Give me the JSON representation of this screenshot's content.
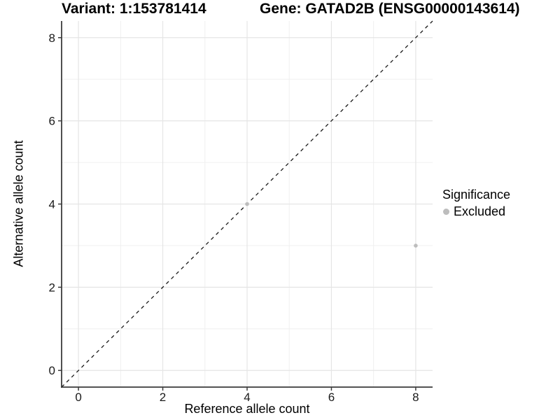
{
  "titles": {
    "variant": "Variant: 1:153781414",
    "gene": "Gene: GATAD2B (ENSG00000143614)"
  },
  "chart_data": {
    "type": "scatter",
    "title": "Variant: 1:153781414   Gene: GATAD2B (ENSG00000143614)",
    "xlabel": "Reference allele count",
    "ylabel": "Alternative allele count",
    "xlim": [
      -0.4,
      8.4
    ],
    "ylim": [
      -0.4,
      8.4
    ],
    "x_ticks": [
      0,
      2,
      4,
      6,
      8
    ],
    "y_ticks": [
      0,
      2,
      4,
      6,
      8
    ],
    "x_minor_ticks": [
      1,
      3,
      5,
      7
    ],
    "y_minor_ticks": [
      1,
      3,
      5,
      7
    ],
    "grid": "major+minor",
    "legend_position": "right",
    "legend": {
      "title": "Significance",
      "entries": [
        {
          "label": "Excluded",
          "color": "#bdbdbd"
        }
      ]
    },
    "series": [
      {
        "name": "Excluded",
        "color": "#bdbdbd",
        "marker": "circle",
        "points": [
          {
            "x": 4,
            "y": 4
          },
          {
            "x": 8,
            "y": 3
          }
        ]
      }
    ],
    "reference_line": {
      "type": "identity",
      "equation": "y = x",
      "style": "dashed",
      "color": "#1a1a1a"
    }
  },
  "colors": {
    "background": "#ffffff",
    "grid_major": "#e5e5e5",
    "grid_minor": "#f0f0f0",
    "axis_line": "#3c3c3c",
    "tick_label": "#1a1a1a",
    "point": "#bdbdbd"
  }
}
